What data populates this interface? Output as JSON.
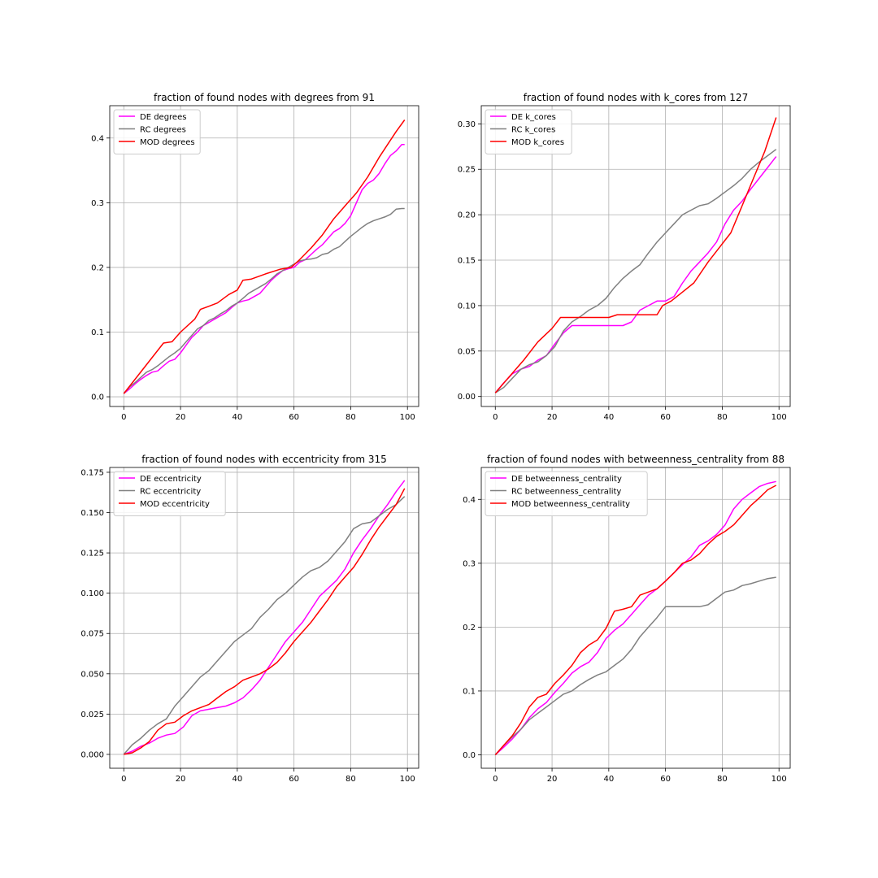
{
  "figure": {
    "background": "#ffffff",
    "grid_color": "#b0b0b0",
    "axes_color": "#000000",
    "series_colors": {
      "DE": "#ff00ff",
      "RC": "#808080",
      "MOD": "#ff0000"
    }
  },
  "chart_data": [
    {
      "type": "line",
      "title": "fraction of found nodes with degrees from 91",
      "xlim": [
        -4.95,
        103.95
      ],
      "ylim": [
        -0.015,
        0.45
      ],
      "xticks": [
        0,
        20,
        40,
        60,
        80,
        100
      ],
      "xtick_labels": [
        "0",
        "20",
        "40",
        "60",
        "80",
        "100"
      ],
      "yticks": [
        0.0,
        0.1,
        0.2,
        0.3,
        0.4
      ],
      "ytick_labels": [
        "0.0",
        "0.1",
        "0.2",
        "0.3",
        "0.4"
      ],
      "grid": true,
      "legend": "top-left",
      "series": [
        {
          "name": "DE degrees",
          "color": "#ff00ff",
          "x": [
            0,
            2,
            4,
            6,
            8,
            10,
            12,
            14,
            16,
            18,
            20,
            22,
            24,
            26,
            28,
            30,
            32,
            34,
            36,
            38,
            40,
            42,
            44,
            46,
            48,
            50,
            52,
            54,
            56,
            58,
            60,
            62,
            64,
            66,
            68,
            70,
            72,
            74,
            76,
            78,
            80,
            82,
            84,
            86,
            88,
            90,
            92,
            94,
            96,
            98,
            99
          ],
          "y": [
            0.005,
            0.012,
            0.02,
            0.027,
            0.033,
            0.038,
            0.04,
            0.048,
            0.055,
            0.058,
            0.068,
            0.08,
            0.092,
            0.1,
            0.11,
            0.115,
            0.12,
            0.125,
            0.13,
            0.138,
            0.145,
            0.148,
            0.15,
            0.155,
            0.16,
            0.17,
            0.18,
            0.188,
            0.195,
            0.198,
            0.2,
            0.208,
            0.212,
            0.22,
            0.228,
            0.235,
            0.245,
            0.255,
            0.26,
            0.268,
            0.28,
            0.3,
            0.32,
            0.33,
            0.335,
            0.345,
            0.36,
            0.373,
            0.38,
            0.39,
            0.39
          ]
        },
        {
          "name": "RC degrees",
          "color": "#808080",
          "x": [
            0,
            2,
            4,
            6,
            8,
            10,
            12,
            14,
            16,
            18,
            20,
            22,
            24,
            26,
            28,
            30,
            32,
            34,
            36,
            38,
            40,
            42,
            44,
            46,
            48,
            50,
            52,
            54,
            56,
            58,
            60,
            62,
            64,
            66,
            68,
            70,
            72,
            74,
            76,
            78,
            80,
            82,
            84,
            86,
            88,
            90,
            92,
            94,
            96,
            98,
            99
          ],
          "y": [
            0.005,
            0.015,
            0.022,
            0.03,
            0.038,
            0.042,
            0.048,
            0.055,
            0.062,
            0.068,
            0.075,
            0.085,
            0.095,
            0.105,
            0.11,
            0.118,
            0.122,
            0.128,
            0.133,
            0.14,
            0.145,
            0.152,
            0.16,
            0.165,
            0.17,
            0.175,
            0.182,
            0.19,
            0.195,
            0.2,
            0.205,
            0.21,
            0.212,
            0.213,
            0.215,
            0.22,
            0.222,
            0.228,
            0.232,
            0.24,
            0.248,
            0.255,
            0.262,
            0.268,
            0.272,
            0.275,
            0.278,
            0.282,
            0.29,
            0.291,
            0.291
          ]
        },
        {
          "name": "MOD degrees",
          "color": "#ff0000",
          "x": [
            0,
            14,
            17,
            20,
            25,
            27,
            30,
            33,
            37,
            40,
            42,
            45,
            50,
            55,
            59,
            62,
            66,
            70,
            74,
            78,
            82,
            86,
            90,
            93,
            96,
            99
          ],
          "y": [
            0.005,
            0.083,
            0.085,
            0.1,
            0.12,
            0.135,
            0.14,
            0.145,
            0.158,
            0.165,
            0.18,
            0.182,
            0.19,
            0.197,
            0.2,
            0.212,
            0.23,
            0.25,
            0.275,
            0.295,
            0.315,
            0.34,
            0.37,
            0.39,
            0.41,
            0.428
          ]
        }
      ]
    },
    {
      "type": "line",
      "title": "fraction of found nodes with k_cores from 127",
      "xlim": [
        -4.95,
        103.95
      ],
      "ylim": [
        -0.011,
        0.32
      ],
      "xticks": [
        0,
        20,
        40,
        60,
        80,
        100
      ],
      "xtick_labels": [
        "0",
        "20",
        "40",
        "60",
        "80",
        "100"
      ],
      "yticks": [
        0.0,
        0.05,
        0.1,
        0.15,
        0.2,
        0.25,
        0.3
      ],
      "ytick_labels": [
        "0.00",
        "0.05",
        "0.10",
        "0.15",
        "0.20",
        "0.25",
        "0.30"
      ],
      "grid": true,
      "legend": "top-left",
      "series": [
        {
          "name": "DE k_cores",
          "color": "#ff00ff",
          "x": [
            0,
            3,
            6,
            9,
            12,
            15,
            18,
            21,
            24,
            27,
            30,
            35,
            40,
            45,
            48,
            51,
            54,
            57,
            60,
            63,
            66,
            69,
            72,
            75,
            78,
            81,
            84,
            87,
            90,
            93,
            96,
            99
          ],
          "y": [
            0.004,
            0.015,
            0.025,
            0.03,
            0.033,
            0.04,
            0.045,
            0.058,
            0.07,
            0.078,
            0.078,
            0.078,
            0.078,
            0.078,
            0.082,
            0.095,
            0.1,
            0.105,
            0.105,
            0.11,
            0.125,
            0.138,
            0.148,
            0.158,
            0.17,
            0.19,
            0.205,
            0.215,
            0.228,
            0.24,
            0.252,
            0.264
          ]
        },
        {
          "name": "RC k_cores",
          "color": "#808080",
          "x": [
            0,
            3,
            6,
            9,
            12,
            15,
            18,
            21,
            24,
            27,
            30,
            33,
            36,
            39,
            42,
            45,
            48,
            51,
            54,
            57,
            60,
            63,
            66,
            69,
            72,
            75,
            78,
            81,
            84,
            87,
            90,
            93,
            96,
            99
          ],
          "y": [
            0.004,
            0.01,
            0.02,
            0.03,
            0.035,
            0.038,
            0.045,
            0.055,
            0.072,
            0.082,
            0.088,
            0.095,
            0.1,
            0.108,
            0.12,
            0.13,
            0.138,
            0.145,
            0.158,
            0.17,
            0.18,
            0.19,
            0.2,
            0.205,
            0.21,
            0.212,
            0.218,
            0.225,
            0.232,
            0.24,
            0.25,
            0.258,
            0.265,
            0.272
          ]
        },
        {
          "name": "MOD k_cores",
          "color": "#ff0000",
          "x": [
            0,
            5,
            10,
            15,
            20,
            23,
            30,
            40,
            43,
            50,
            57,
            59,
            62,
            66,
            70,
            75,
            80,
            83,
            87,
            91,
            95,
            99
          ],
          "y": [
            0.004,
            0.022,
            0.04,
            0.06,
            0.075,
            0.087,
            0.087,
            0.087,
            0.09,
            0.09,
            0.09,
            0.1,
            0.105,
            0.115,
            0.125,
            0.148,
            0.168,
            0.18,
            0.21,
            0.24,
            0.27,
            0.307
          ]
        }
      ]
    },
    {
      "type": "line",
      "title": "fraction of found nodes with eccentricity from 315",
      "xlim": [
        -4.95,
        103.95
      ],
      "ylim": [
        -0.0086,
        0.178
      ],
      "xticks": [
        0,
        20,
        40,
        60,
        80,
        100
      ],
      "xtick_labels": [
        "0",
        "20",
        "40",
        "60",
        "80",
        "100"
      ],
      "yticks": [
        0.0,
        0.025,
        0.05,
        0.075,
        0.1,
        0.125,
        0.15,
        0.175
      ],
      "ytick_labels": [
        "0.000",
        "0.025",
        "0.050",
        "0.075",
        "0.100",
        "0.125",
        "0.150",
        "0.175"
      ],
      "grid": true,
      "legend": "top-left",
      "series": [
        {
          "name": "DE eccentricity",
          "color": "#ff00ff",
          "x": [
            0,
            3,
            6,
            9,
            12,
            15,
            18,
            21,
            24,
            27,
            30,
            33,
            36,
            39,
            42,
            45,
            48,
            51,
            54,
            57,
            60,
            63,
            66,
            69,
            72,
            75,
            78,
            81,
            84,
            87,
            90,
            93,
            96,
            99
          ],
          "y": [
            0.0,
            0.002,
            0.005,
            0.007,
            0.01,
            0.012,
            0.013,
            0.017,
            0.024,
            0.027,
            0.028,
            0.029,
            0.03,
            0.032,
            0.035,
            0.04,
            0.046,
            0.054,
            0.062,
            0.07,
            0.076,
            0.082,
            0.09,
            0.098,
            0.103,
            0.108,
            0.115,
            0.125,
            0.133,
            0.14,
            0.148,
            0.155,
            0.163,
            0.17
          ]
        },
        {
          "name": "RC eccentricity",
          "color": "#808080",
          "x": [
            0,
            3,
            6,
            9,
            12,
            15,
            18,
            21,
            24,
            27,
            30,
            33,
            36,
            39,
            42,
            45,
            48,
            51,
            54,
            57,
            60,
            63,
            66,
            69,
            72,
            75,
            78,
            81,
            84,
            87,
            90,
            93,
            96,
            99
          ],
          "y": [
            0.0,
            0.006,
            0.01,
            0.015,
            0.019,
            0.022,
            0.03,
            0.036,
            0.042,
            0.048,
            0.052,
            0.058,
            0.064,
            0.07,
            0.074,
            0.078,
            0.085,
            0.09,
            0.096,
            0.1,
            0.105,
            0.11,
            0.114,
            0.116,
            0.12,
            0.126,
            0.132,
            0.14,
            0.143,
            0.144,
            0.148,
            0.152,
            0.155,
            0.16
          ]
        },
        {
          "name": "MOD eccentricity",
          "color": "#ff0000",
          "x": [
            0,
            3,
            6,
            9,
            12,
            15,
            18,
            21,
            24,
            27,
            30,
            33,
            36,
            39,
            42,
            45,
            48,
            51,
            54,
            57,
            60,
            63,
            66,
            69,
            72,
            75,
            78,
            81,
            84,
            87,
            90,
            93,
            96,
            99
          ],
          "y": [
            0.0,
            0.001,
            0.004,
            0.008,
            0.015,
            0.019,
            0.02,
            0.024,
            0.027,
            0.029,
            0.031,
            0.035,
            0.039,
            0.042,
            0.046,
            0.048,
            0.05,
            0.053,
            0.057,
            0.063,
            0.07,
            0.076,
            0.082,
            0.089,
            0.096,
            0.104,
            0.11,
            0.116,
            0.124,
            0.133,
            0.141,
            0.148,
            0.155,
            0.165
          ]
        }
      ]
    },
    {
      "type": "line",
      "title": "fraction of found nodes with betweenness_centrality from 88",
      "xlim": [
        -4.95,
        103.95
      ],
      "ylim": [
        -0.021,
        0.45
      ],
      "xticks": [
        0,
        20,
        40,
        60,
        80,
        100
      ],
      "xtick_labels": [
        "0",
        "20",
        "40",
        "60",
        "80",
        "100"
      ],
      "yticks": [
        0.0,
        0.1,
        0.2,
        0.3,
        0.4
      ],
      "ytick_labels": [
        "0.0",
        "0.1",
        "0.2",
        "0.3",
        "0.4"
      ],
      "grid": true,
      "legend": "top-left",
      "series": [
        {
          "name": "DE betweenness_centrality",
          "color": "#ff00ff",
          "x": [
            0,
            3,
            6,
            9,
            12,
            15,
            18,
            21,
            24,
            27,
            30,
            33,
            36,
            39,
            42,
            45,
            48,
            51,
            54,
            57,
            60,
            63,
            66,
            69,
            72,
            75,
            78,
            81,
            84,
            87,
            90,
            93,
            96,
            99
          ],
          "y": [
            0.0,
            0.012,
            0.025,
            0.04,
            0.058,
            0.072,
            0.082,
            0.098,
            0.112,
            0.128,
            0.138,
            0.145,
            0.16,
            0.182,
            0.195,
            0.205,
            0.22,
            0.235,
            0.25,
            0.26,
            0.272,
            0.285,
            0.298,
            0.31,
            0.328,
            0.335,
            0.345,
            0.36,
            0.385,
            0.4,
            0.41,
            0.42,
            0.425,
            0.428
          ]
        },
        {
          "name": "RC betweenness_centrality",
          "color": "#808080",
          "x": [
            0,
            3,
            6,
            9,
            12,
            15,
            18,
            21,
            24,
            27,
            30,
            33,
            36,
            39,
            42,
            45,
            48,
            51,
            54,
            57,
            60,
            63,
            66,
            69,
            72,
            75,
            78,
            81,
            84,
            87,
            90,
            93,
            96,
            99
          ],
          "y": [
            0.0,
            0.015,
            0.028,
            0.04,
            0.055,
            0.065,
            0.075,
            0.085,
            0.095,
            0.1,
            0.11,
            0.118,
            0.125,
            0.13,
            0.14,
            0.15,
            0.165,
            0.185,
            0.2,
            0.215,
            0.232,
            0.232,
            0.232,
            0.232,
            0.232,
            0.235,
            0.245,
            0.255,
            0.258,
            0.265,
            0.268,
            0.272,
            0.276,
            0.278
          ]
        },
        {
          "name": "MOD betweenness_centrality",
          "color": "#ff0000",
          "x": [
            0,
            3,
            6,
            9,
            12,
            15,
            18,
            21,
            24,
            27,
            30,
            33,
            36,
            39,
            42,
            45,
            48,
            51,
            54,
            57,
            60,
            63,
            66,
            69,
            72,
            75,
            78,
            81,
            84,
            87,
            90,
            93,
            96,
            99
          ],
          "y": [
            0.0,
            0.015,
            0.03,
            0.05,
            0.075,
            0.09,
            0.095,
            0.112,
            0.125,
            0.14,
            0.16,
            0.172,
            0.18,
            0.198,
            0.225,
            0.228,
            0.232,
            0.25,
            0.255,
            0.26,
            0.272,
            0.285,
            0.3,
            0.305,
            0.315,
            0.33,
            0.342,
            0.35,
            0.36,
            0.375,
            0.39,
            0.402,
            0.415,
            0.422
          ]
        }
      ]
    }
  ]
}
